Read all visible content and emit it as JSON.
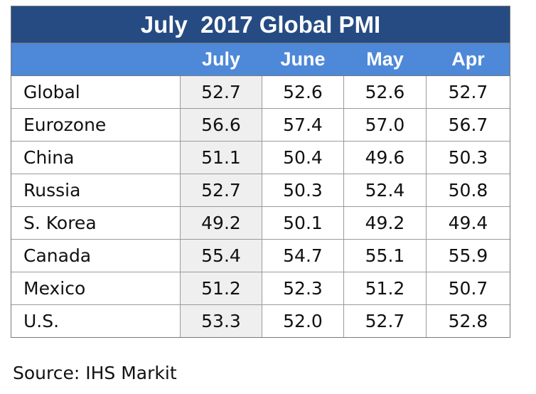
{
  "title": "July  2017 Global PMI",
  "source": "Source: IHS Markit",
  "colors": {
    "title_bg": "#254b82",
    "header_bg": "#4e88d8",
    "highlight_col": "#efefef"
  },
  "chart_data": {
    "type": "table",
    "title": "July  2017 Global PMI",
    "columns": [
      "",
      "July",
      "June",
      "May",
      "Apr"
    ],
    "rows": [
      {
        "label": "Global",
        "values": [
          "52.7",
          "52.6",
          "52.6",
          "52.7"
        ]
      },
      {
        "label": "Eurozone",
        "values": [
          "56.6",
          "57.4",
          "57.0",
          "56.7"
        ]
      },
      {
        "label": "China",
        "values": [
          "51.1",
          "50.4",
          "49.6",
          "50.3"
        ]
      },
      {
        "label": "Russia",
        "values": [
          "52.7",
          "50.3",
          "52.4",
          "50.8"
        ]
      },
      {
        "label": "S. Korea",
        "values": [
          "49.2",
          "50.1",
          "49.2",
          "49.4"
        ]
      },
      {
        "label": "Canada",
        "values": [
          "55.4",
          "54.7",
          "55.1",
          "55.9"
        ]
      },
      {
        "label": "Mexico",
        "values": [
          "51.2",
          "52.3",
          "51.2",
          "50.7"
        ]
      },
      {
        "label": "U.S.",
        "values": [
          "53.3",
          "52.0",
          "52.7",
          "52.8"
        ]
      }
    ]
  }
}
